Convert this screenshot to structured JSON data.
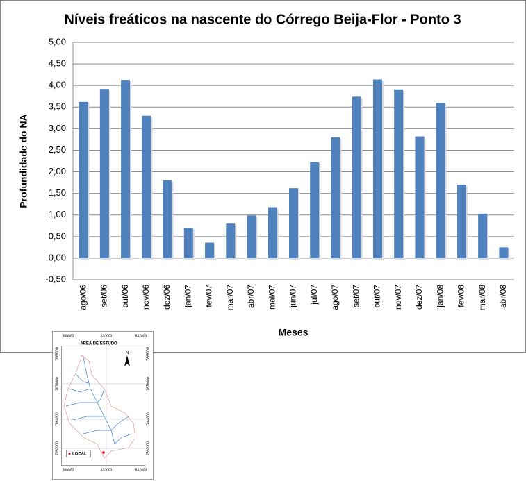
{
  "chart_data": {
    "type": "bar",
    "title": "Níveis freáticos na nascente do Córrego Beija-Flor - Ponto 3",
    "y_label": "Profundidade do NA",
    "x_label": "Meses",
    "categories": [
      "ago/06",
      "set/06",
      "out/06",
      "nov/06",
      "dez/06",
      "jan/07",
      "fev/07",
      "mar/07",
      "abr/07",
      "mai/07",
      "jun/07",
      "jul/07",
      "ago/07",
      "set/07",
      "out/07",
      "nov/07",
      "dez/07",
      "jan/08",
      "fev/08",
      "mar/08",
      "abr/08"
    ],
    "values": [
      3.62,
      3.92,
      4.13,
      3.3,
      1.8,
      0.7,
      0.36,
      0.8,
      0.99,
      1.18,
      1.62,
      2.22,
      2.8,
      3.74,
      4.14,
      3.91,
      2.82,
      3.6,
      1.7,
      1.03,
      0.25
    ],
    "color": "#4f81bd",
    "ylim": [
      -0.5,
      5
    ],
    "yticks": [
      {
        "value": -0.5,
        "label": "-0,50"
      },
      {
        "value": 0,
        "label": "0,00"
      },
      {
        "value": 0.5,
        "label": "0,50"
      },
      {
        "value": 1,
        "label": "1,00"
      },
      {
        "value": 1.5,
        "label": "1,50"
      },
      {
        "value": 2,
        "label": "2,00"
      },
      {
        "value": 2.5,
        "label": "2,50"
      },
      {
        "value": 3,
        "label": "3,00"
      },
      {
        "value": 3.5,
        "label": "3,50"
      },
      {
        "value": 4,
        "label": "4,00"
      },
      {
        "value": 4.5,
        "label": "4,50"
      },
      {
        "value": 5,
        "label": "5,00"
      }
    ],
    "grid": true
  },
  "map_inset": {
    "title": "ÁREA DE ESTUDO",
    "north": "N",
    "legend": "LOCAL",
    "x_labels": [
      "808000",
      "820000",
      "832000"
    ],
    "y_labels": [
      "7888000",
      "7876000",
      "7864000",
      "7852000"
    ]
  }
}
